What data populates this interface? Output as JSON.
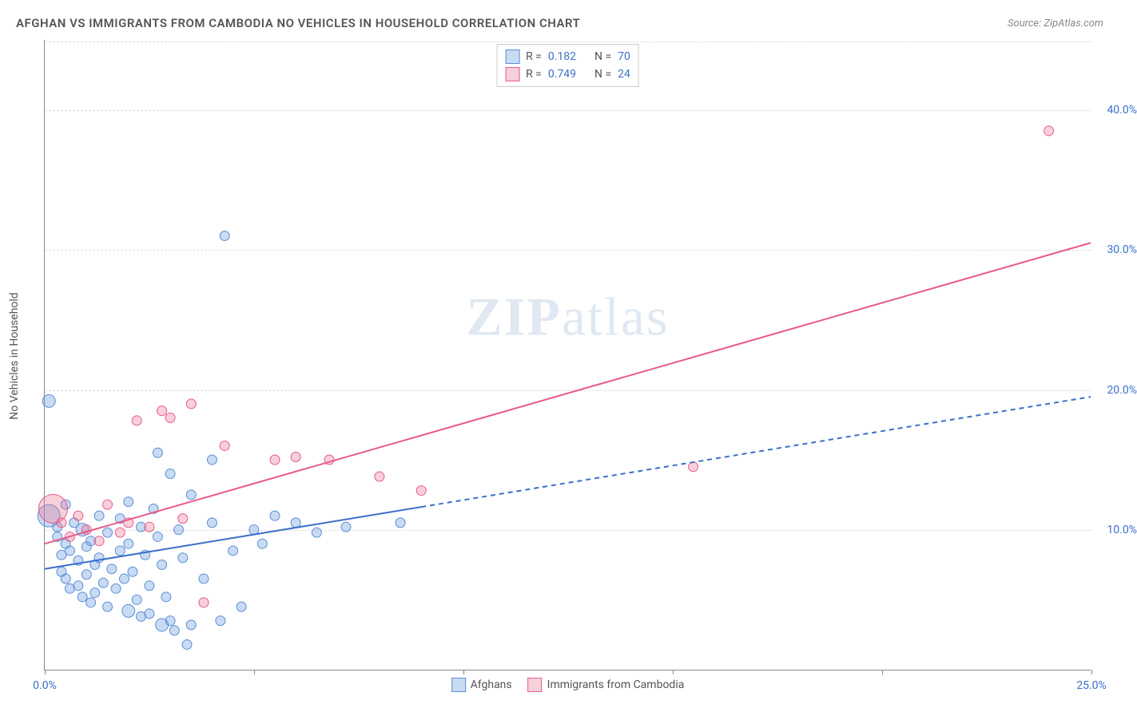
{
  "title": "AFGHAN VS IMMIGRANTS FROM CAMBODIA NO VEHICLES IN HOUSEHOLD CORRELATION CHART",
  "source": "Source: ZipAtlas.com",
  "y_axis_label": "No Vehicles in Household",
  "watermark": {
    "bold": "ZIP",
    "light": "atlas"
  },
  "chart": {
    "type": "scatter",
    "xlim": [
      0,
      25
    ],
    "ylim": [
      0,
      45
    ],
    "x_ticks": [
      0,
      5,
      10,
      15,
      20,
      25
    ],
    "x_tick_labels": [
      "0.0%",
      "",
      "",
      "",
      "",
      "25.0%"
    ],
    "y_ticks": [
      10,
      20,
      30,
      40
    ],
    "y_tick_labels": [
      "10.0%",
      "20.0%",
      "30.0%",
      "40.0%"
    ],
    "background_color": "#ffffff",
    "grid_color": "#dddddd"
  },
  "series": [
    {
      "name": "Afghans",
      "fill": "rgba(100,150,220,0.35)",
      "stroke": "#5a8fd6",
      "r_value": "0.182",
      "n_value": "70",
      "trend": {
        "x1": 0,
        "y1": 7.2,
        "x2": 25,
        "y2": 19.5,
        "solid_until_x": 9,
        "color": "#3b6fc9",
        "width": 2
      },
      "points": [
        [
          0.1,
          19.2,
          8
        ],
        [
          0.1,
          11,
          14
        ],
        [
          0.3,
          10.2,
          6
        ],
        [
          0.3,
          9.5,
          6
        ],
        [
          0.4,
          8.2,
          6
        ],
        [
          0.4,
          7.0,
          6
        ],
        [
          0.5,
          11.8,
          6
        ],
        [
          0.5,
          9.0,
          6
        ],
        [
          0.5,
          6.5,
          6
        ],
        [
          0.6,
          8.5,
          6
        ],
        [
          0.6,
          5.8,
          6
        ],
        [
          0.7,
          10.5,
          6
        ],
        [
          0.8,
          7.8,
          6
        ],
        [
          0.8,
          6.0,
          6
        ],
        [
          0.9,
          10.0,
          8
        ],
        [
          0.9,
          5.2,
          6
        ],
        [
          1.0,
          8.8,
          6
        ],
        [
          1.0,
          6.8,
          6
        ],
        [
          1.1,
          9.2,
          6
        ],
        [
          1.1,
          4.8,
          6
        ],
        [
          1.2,
          7.5,
          6
        ],
        [
          1.2,
          5.5,
          6
        ],
        [
          1.3,
          11.0,
          6
        ],
        [
          1.3,
          8.0,
          6
        ],
        [
          1.4,
          6.2,
          6
        ],
        [
          1.5,
          9.8,
          6
        ],
        [
          1.5,
          4.5,
          6
        ],
        [
          1.6,
          7.2,
          6
        ],
        [
          1.7,
          5.8,
          6
        ],
        [
          1.8,
          10.8,
          6
        ],
        [
          1.8,
          8.5,
          6
        ],
        [
          1.9,
          6.5,
          6
        ],
        [
          2.0,
          12.0,
          6
        ],
        [
          2.0,
          9.0,
          6
        ],
        [
          2.0,
          4.2,
          8
        ],
        [
          2.1,
          7.0,
          6
        ],
        [
          2.2,
          5.0,
          6
        ],
        [
          2.3,
          10.2,
          6
        ],
        [
          2.3,
          3.8,
          6
        ],
        [
          2.4,
          8.2,
          6
        ],
        [
          2.5,
          6.0,
          6
        ],
        [
          2.5,
          4.0,
          6
        ],
        [
          2.6,
          11.5,
          6
        ],
        [
          2.7,
          15.5,
          6
        ],
        [
          2.7,
          9.5,
          6
        ],
        [
          2.8,
          7.5,
          6
        ],
        [
          2.8,
          3.2,
          8
        ],
        [
          2.9,
          5.2,
          6
        ],
        [
          3.0,
          14.0,
          6
        ],
        [
          3.0,
          3.5,
          6
        ],
        [
          3.1,
          2.8,
          6
        ],
        [
          3.2,
          10.0,
          6
        ],
        [
          3.3,
          8.0,
          6
        ],
        [
          3.4,
          1.8,
          6
        ],
        [
          3.5,
          12.5,
          6
        ],
        [
          3.5,
          3.2,
          6
        ],
        [
          3.8,
          6.5,
          6
        ],
        [
          4.0,
          15.0,
          6
        ],
        [
          4.0,
          10.5,
          6
        ],
        [
          4.2,
          3.5,
          6
        ],
        [
          4.3,
          31.0,
          6
        ],
        [
          4.5,
          8.5,
          6
        ],
        [
          4.7,
          4.5,
          6
        ],
        [
          5.0,
          10.0,
          6
        ],
        [
          5.2,
          9.0,
          6
        ],
        [
          5.5,
          11.0,
          6
        ],
        [
          6.0,
          10.5,
          6
        ],
        [
          6.5,
          9.8,
          6
        ],
        [
          7.2,
          10.2,
          6
        ],
        [
          8.5,
          10.5,
          6
        ]
      ]
    },
    {
      "name": "Immigrants from Cambodia",
      "fill": "rgba(235,120,150,0.35)",
      "stroke": "#e85a8a",
      "r_value": "0.749",
      "n_value": "24",
      "trend": {
        "x1": 0,
        "y1": 9.0,
        "x2": 25,
        "y2": 30.5,
        "solid_until_x": 25,
        "color": "#e85a8a",
        "width": 2
      },
      "points": [
        [
          0.2,
          11.5,
          18
        ],
        [
          0.4,
          10.5,
          6
        ],
        [
          0.6,
          9.5,
          6
        ],
        [
          0.8,
          11.0,
          6
        ],
        [
          1.0,
          10.0,
          6
        ],
        [
          1.3,
          9.2,
          6
        ],
        [
          1.5,
          11.8,
          6
        ],
        [
          1.8,
          9.8,
          6
        ],
        [
          2.0,
          10.5,
          6
        ],
        [
          2.2,
          17.8,
          6
        ],
        [
          2.5,
          10.2,
          6
        ],
        [
          2.8,
          18.5,
          6
        ],
        [
          3.0,
          18.0,
          6
        ],
        [
          3.3,
          10.8,
          6
        ],
        [
          3.5,
          19.0,
          6
        ],
        [
          3.8,
          4.8,
          6
        ],
        [
          4.3,
          16.0,
          6
        ],
        [
          5.5,
          15.0,
          6
        ],
        [
          6.0,
          15.2,
          6
        ],
        [
          6.8,
          15.0,
          6
        ],
        [
          8.0,
          13.8,
          6
        ],
        [
          9.0,
          12.8,
          6
        ],
        [
          15.5,
          14.5,
          6
        ],
        [
          24.0,
          38.5,
          6
        ]
      ]
    }
  ],
  "legend_bottom": [
    {
      "label": "Afghans",
      "fill": "rgba(100,150,220,0.35)",
      "stroke": "#5a8fd6"
    },
    {
      "label": "Immigrants from Cambodia",
      "fill": "rgba(235,120,150,0.35)",
      "stroke": "#e85a8a"
    }
  ]
}
